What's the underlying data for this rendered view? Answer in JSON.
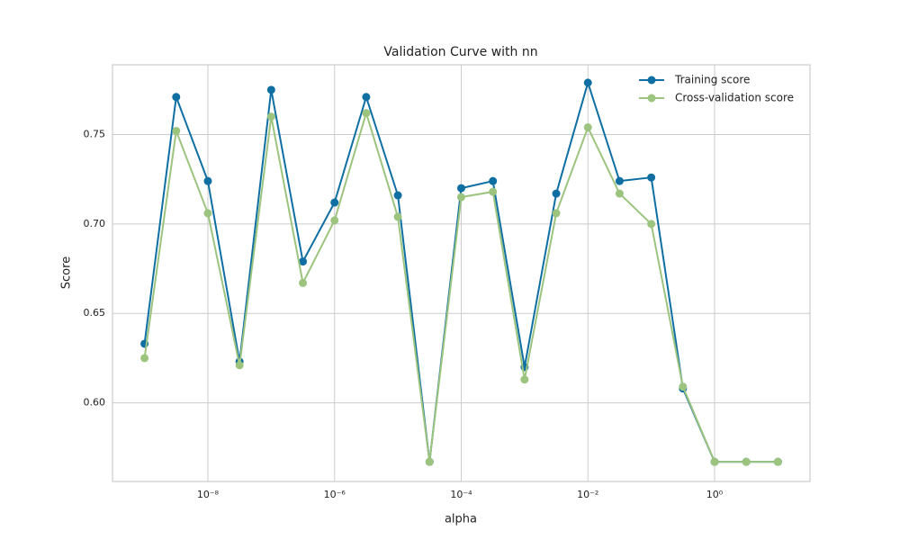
{
  "chart_data": {
    "type": "line",
    "title": "Validation Curve with nn",
    "xlabel": "alpha",
    "ylabel": "Score",
    "x": [
      1e-09,
      3.1623e-09,
      1e-08,
      3.1623e-08,
      1e-07,
      3.1623e-07,
      1e-06,
      3.1623e-06,
      1e-05,
      3.1623e-05,
      0.0001,
      0.00031623,
      0.001,
      0.0031623,
      0.01,
      0.031623,
      0.1,
      0.31623,
      1,
      3.1623,
      10
    ],
    "series": [
      {
        "name": "Training score",
        "color": "#0f6fa3",
        "values": [
          0.633,
          0.771,
          0.724,
          0.623,
          0.775,
          0.679,
          0.712,
          0.771,
          0.716,
          0.567,
          0.72,
          0.724,
          0.62,
          0.717,
          0.779,
          0.724,
          0.726,
          0.608,
          0.567,
          0.567,
          0.567
        ]
      },
      {
        "name": "Cross-validation score",
        "color": "#9cc47f",
        "values": [
          0.625,
          0.752,
          0.706,
          0.621,
          0.76,
          0.667,
          0.702,
          0.762,
          0.704,
          0.567,
          0.715,
          0.718,
          0.613,
          0.706,
          0.754,
          0.717,
          0.7,
          0.609,
          0.567,
          0.567,
          0.567
        ]
      }
    ],
    "xscale": "log",
    "xlim": [
      3.12e-10,
      32.1
    ],
    "xticks": [
      {
        "value": 1e-08,
        "label": "10⁻⁸"
      },
      {
        "value": 1e-06,
        "label": "10⁻⁶"
      },
      {
        "value": 0.0001,
        "label": "10⁻⁴"
      },
      {
        "value": 0.01,
        "label": "10⁻²"
      },
      {
        "value": 1,
        "label": "10⁰"
      }
    ],
    "ylim": [
      0.556,
      0.789
    ],
    "yticks": [
      {
        "value": 0.6,
        "label": "0.60"
      },
      {
        "value": 0.65,
        "label": "0.65"
      },
      {
        "value": 0.7,
        "label": "0.70"
      },
      {
        "value": 0.75,
        "label": "0.75"
      }
    ],
    "grid": true,
    "legend": "upper right"
  }
}
